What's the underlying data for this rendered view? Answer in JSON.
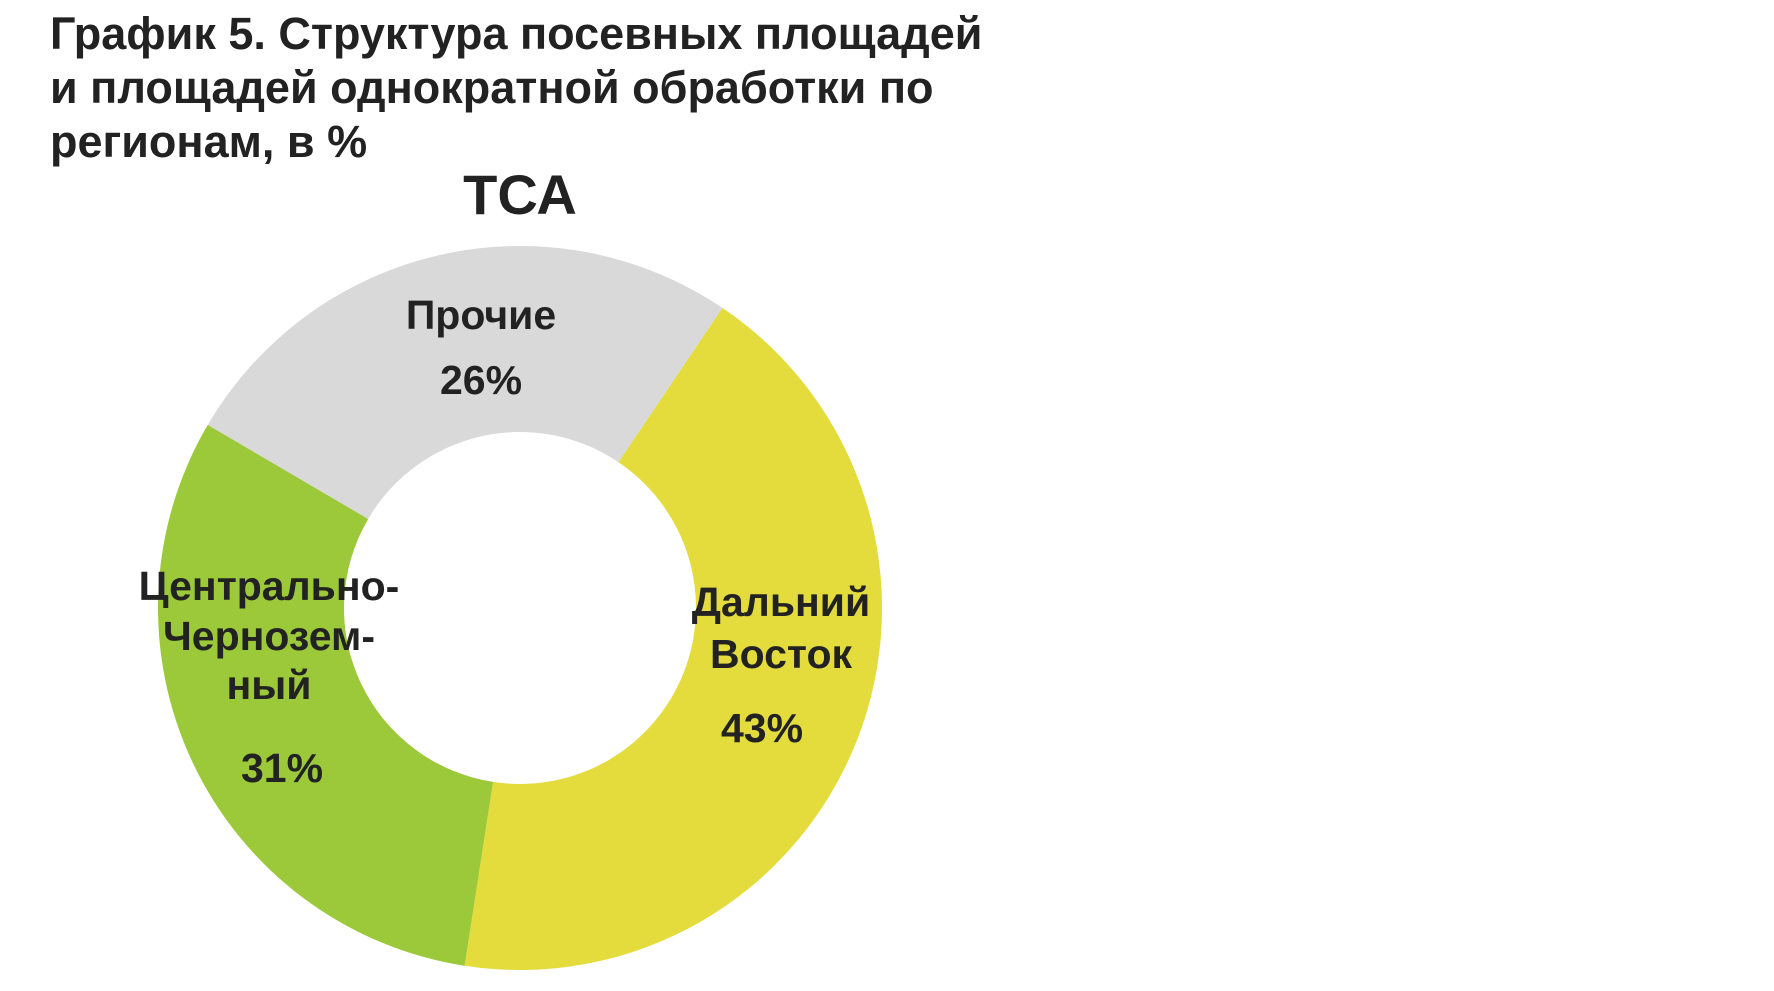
{
  "chart_data": {
    "type": "donut",
    "title": [
      "График 5. Структура посевных площадей",
      "и площадей однократной обработки по",
      "регионам, в %"
    ],
    "subtitle": "ТСА",
    "categories": [
      [
        "Дальний",
        "Восток"
      ],
      [
        "Центрально-",
        "Чернозем-",
        "ный"
      ],
      [
        "Прочие"
      ]
    ],
    "values": [
      43,
      31,
      26
    ],
    "value_labels": [
      "43%",
      "31%",
      "26%"
    ],
    "colors": [
      "#e3dc3c",
      "#9cc93a",
      "#d9d9d9"
    ]
  }
}
